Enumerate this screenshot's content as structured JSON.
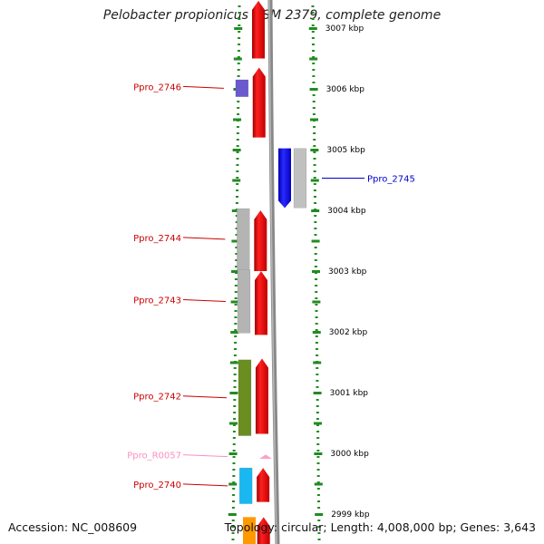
{
  "title": "Pelobacter propionicus DSM 2379, complete genome",
  "footer": {
    "accession": "Accession: NC_008609",
    "stats": "Topology: circular; Length: 4,008,000 bp; Genes: 3,643"
  },
  "scale": [
    {
      "label": "3007 kbp",
      "kbp": 3007
    },
    {
      "label": "3006 kbp",
      "kbp": 3006
    },
    {
      "label": "3005 kbp",
      "kbp": 3005
    },
    {
      "label": "3004 kbp",
      "kbp": 3004
    },
    {
      "label": "3003 kbp",
      "kbp": 3003
    },
    {
      "label": "3002 kbp",
      "kbp": 3002
    },
    {
      "label": "3001 kbp",
      "kbp": 3001
    },
    {
      "label": "3000 kbp",
      "kbp": 3000
    },
    {
      "label": "2999 kbp",
      "kbp": 2999
    }
  ],
  "genes": [
    {
      "label": "Ppro_2746",
      "strand": "left",
      "start_kbp": 3006.15,
      "end_kbp": 3005.87,
      "cog_color": "#6a5acd",
      "label_color": "#cc0000"
    },
    {
      "label": "Ppro_2745",
      "strand": "right",
      "start_kbp": 3005.02,
      "end_kbp": 3004.04,
      "cog_color": "#c0c0c0",
      "label_color": "#0000cc"
    },
    {
      "label": "Ppro_2744",
      "strand": "left",
      "start_kbp": 3004.03,
      "end_kbp": 3003.02,
      "cog_color": "#b4b4b4",
      "label_color": "#cc0000"
    },
    {
      "label": "Ppro_2743",
      "strand": "left",
      "start_kbp": 3003.02,
      "end_kbp": 3001.98,
      "cog_color": "#b4b4b4",
      "label_color": "#cc0000"
    },
    {
      "label": "Ppro_2742",
      "strand": "left",
      "start_kbp": 3001.54,
      "end_kbp": 3000.29,
      "cog_color": "#6b8e23",
      "label_color": "#cc0000"
    },
    {
      "label": "Ppro_R0057",
      "strand": "left",
      "start_kbp": 2999.98,
      "end_kbp": 2999.91,
      "cog_color": "#ff9fc8",
      "label_color": "#ff8cc0"
    },
    {
      "label": "Ppro_2740",
      "strand": "left",
      "start_kbp": 2999.76,
      "end_kbp": 2999.17,
      "cog_color": "#1ab8f0",
      "label_color": "#cc0000"
    }
  ],
  "forward_cds": [
    {
      "start_kbp": 3007.45,
      "end_kbp": 3006.5
    },
    {
      "start_kbp": 3006.35,
      "end_kbp": 3005.2
    },
    {
      "start_kbp": 3004.0,
      "end_kbp": 3003.0
    },
    {
      "start_kbp": 3003.0,
      "end_kbp": 3001.95
    },
    {
      "start_kbp": 3001.56,
      "end_kbp": 3000.32
    },
    {
      "start_kbp": 2999.76,
      "end_kbp": 2999.2
    },
    {
      "start_kbp": 2998.95,
      "end_kbp": 2998.4
    }
  ],
  "reverse_cds": [
    {
      "start_kbp": 3005.02,
      "end_kbp": 3004.04,
      "color": "#0000ff"
    }
  ],
  "extra_blocks": [
    {
      "start_kbp": 2998.95,
      "end_kbp": 2998.4,
      "color": "#ff9900"
    }
  ],
  "colors": {
    "cds_forward": "#ee0000",
    "backbone": "#888888",
    "tick": "#228b22",
    "title": "#222222"
  }
}
